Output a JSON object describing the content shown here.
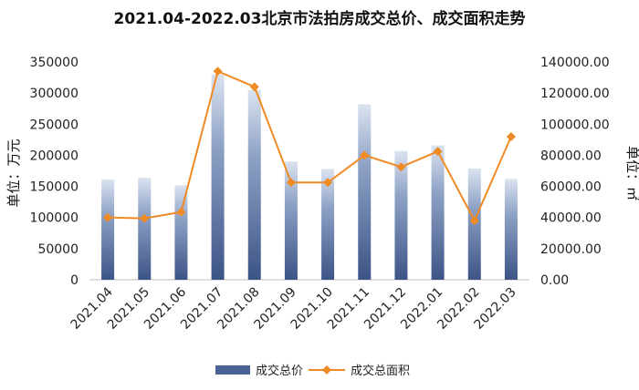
{
  "chart_data": {
    "type": "bar",
    "title": "2021.04-2022.03北京市法拍房成交总价、成交面积走势",
    "categories": [
      "2021.04",
      "2021.05",
      "2021.06",
      "2021.07",
      "2021.08",
      "2021.09",
      "2021.10",
      "2021.11",
      "2021.12",
      "2022.01",
      "2022.02",
      "2022.03"
    ],
    "y_left": {
      "label": "单位：万元",
      "ylim": [
        0,
        350000
      ],
      "ticks": [
        "0",
        "50000",
        "100000",
        "150000",
        "200000",
        "250000",
        "300000",
        "350000"
      ]
    },
    "y_right": {
      "label": "单位：㎡",
      "ylim": [
        0,
        140000
      ],
      "ticks": [
        "0.00",
        "20000.00",
        "40000.00",
        "60000.00",
        "80000.00",
        "100000.00",
        "120000.00",
        "140000.00"
      ]
    },
    "series": [
      {
        "name": "成交总价",
        "kind": "bar",
        "axis": "left",
        "color": "#4a6394",
        "values": [
          161000,
          164000,
          152000,
          330000,
          305000,
          190000,
          178000,
          282000,
          207000,
          216000,
          179000,
          162000
        ]
      },
      {
        "name": "成交总面积",
        "kind": "line",
        "axis": "right",
        "color": "#f08a24",
        "values": [
          40000,
          39500,
          43500,
          134000,
          124000,
          62500,
          62500,
          80000,
          72500,
          82500,
          38000,
          92000
        ]
      }
    ],
    "legend": "bottom",
    "grid": false
  }
}
